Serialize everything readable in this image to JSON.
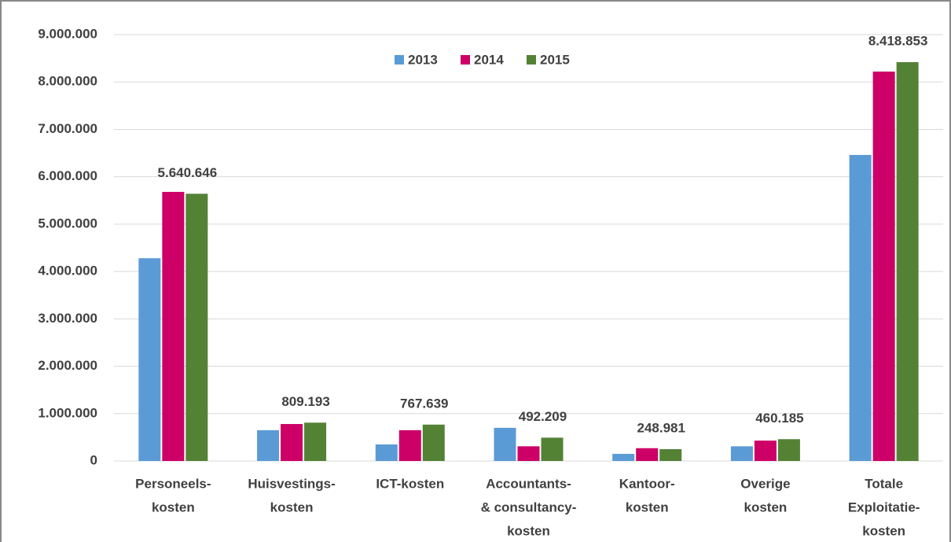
{
  "chart_data": {
    "type": "bar",
    "categories": [
      [
        "Personeels-",
        "kosten"
      ],
      [
        "Huisvestings-",
        "kosten"
      ],
      [
        "ICT-kosten"
      ],
      [
        "Accountants-",
        "& consultancy-",
        "kosten"
      ],
      [
        "Kantoor-",
        "kosten"
      ],
      [
        "Overige",
        "kosten"
      ],
      [
        "Totale",
        "Exploitatie-",
        "kosten"
      ]
    ],
    "series": [
      {
        "name": "2013",
        "color": "#5b9bd5",
        "values": [
          4280000,
          650000,
          350000,
          700000,
          150000,
          310000,
          6460000
        ]
      },
      {
        "name": "2014",
        "color": "#cc0066",
        "values": [
          5680000,
          780000,
          650000,
          310000,
          270000,
          430000,
          8220000
        ]
      },
      {
        "name": "2015",
        "color": "#548235",
        "values": [
          5640646,
          809193,
          767639,
          492209,
          248981,
          460185,
          8418853
        ],
        "value_labels": [
          "5.640.646",
          "809.193",
          "767.639",
          "492.209",
          "248.981",
          "460.185",
          "8.418.853"
        ]
      }
    ],
    "ylim": [
      0,
      9000000
    ],
    "yticks": [
      0,
      {
        "value": 1000000,
        "label": "1.000.000"
      },
      {
        "value": 2000000,
        "label": "2.000.000"
      },
      {
        "value": 3000000,
        "label": "3.000.000"
      },
      {
        "value": 4000000,
        "label": "4.000.000"
      },
      {
        "value": 5000000,
        "label": "5.000.000"
      },
      {
        "value": 6000000,
        "label": "6.000.000"
      },
      {
        "value": 7000000,
        "label": "7.000.000"
      },
      {
        "value": 8000000,
        "label": "8.000.000"
      },
      {
        "value": 9000000,
        "label": "9.000.000"
      }
    ],
    "grid": true,
    "legend": "top"
  }
}
